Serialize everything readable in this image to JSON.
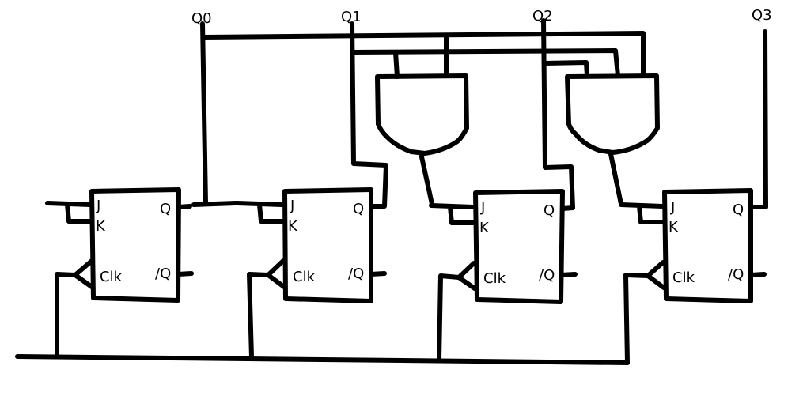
{
  "outputs": {
    "q0": "Q0",
    "q1": "Q1",
    "q2": "Q2",
    "q3": "Q3"
  },
  "flip_flops": [
    {
      "j": "J",
      "k": "K",
      "clk": "Clk",
      "q": "Q",
      "qbar": "/Q"
    },
    {
      "j": "J",
      "k": "K",
      "clk": "Clk",
      "q": "Q",
      "qbar": "/Q"
    },
    {
      "j": "J",
      "k": "K",
      "clk": "Clk",
      "q": "Q",
      "qbar": "/Q"
    },
    {
      "j": "J",
      "k": "K",
      "clk": "Clk",
      "q": "Q",
      "qbar": "/Q"
    }
  ],
  "gates": [
    {
      "type": "AND"
    },
    {
      "type": "AND"
    }
  ],
  "colors": {
    "ink": "#000000",
    "background": "#ffffff"
  }
}
